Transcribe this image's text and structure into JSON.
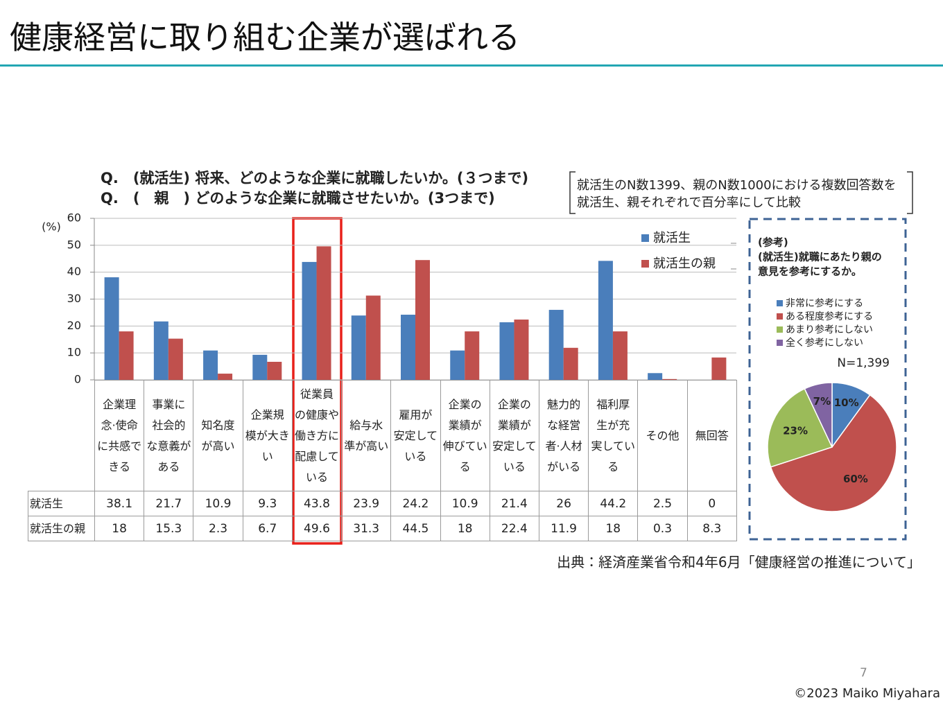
{
  "title": "健康経営に取り組む企業が選ばれる",
  "chart_data": [
    {
      "type": "bar",
      "title": [
        "Q.　(就活生) 将来、どのような企業に就職したいか。(３つまで)",
        "Q.　(　親　) どのような企業に就職させたいか。(3つまで)"
      ],
      "note": [
        "就活生のN数1399、親のN数1000における複数回答数を",
        "就活生、親それぞれで百分率にして比較"
      ],
      "ylabel": "(%)",
      "categories": [
        "企業理\n念·使命\nに共感で\nきる",
        "事業に\n社会的\nな意義が\nある",
        "知名度\nが高い",
        "企業規\n模が大き\nい",
        "従業員\nの健康や\n働き方に\n配慮して\nいる",
        "給与水\n準が高い",
        "雇用が\n安定して\nいる",
        "企業の\n業績が\n伸びてい\nる",
        "企業の\n業績が\n安定して\nいる",
        "魅力的\nな経営\n者·人材\nがいる",
        "福利厚\n生が充\n実してい\nる",
        "その他",
        "無回答"
      ],
      "series": [
        {
          "name": "就活生",
          "color": "#4a7ebb",
          "values": [
            38.1,
            21.7,
            10.9,
            9.3,
            43.8,
            23.9,
            24.2,
            10.9,
            21.4,
            26,
            44.2,
            2.5,
            0
          ]
        },
        {
          "name": "就活生の親",
          "color": "#c0504d",
          "values": [
            18,
            15.3,
            2.3,
            6.7,
            49.6,
            31.3,
            44.5,
            18,
            22.4,
            11.9,
            18,
            0.3,
            8.3
          ]
        }
      ],
      "ylim": [
        0,
        60
      ],
      "yticks": [
        0,
        10,
        20,
        30,
        40,
        50,
        60
      ],
      "grid": true,
      "legend": "upper right"
    },
    {
      "type": "pie",
      "title": [
        "(参考)",
        "(就活生)就職にあたり親の",
        "意見を参考にするか。"
      ],
      "subtitle": "N=1,399",
      "categories": [
        "非常に参考にする",
        "ある程度参考にする",
        "あまり参考にしない",
        "全く参考にしない"
      ],
      "values": [
        10,
        60,
        23,
        7
      ],
      "value_labels": [
        "10%",
        "60%",
        "23%",
        "7%"
      ],
      "colors": [
        "#4a7ebb",
        "#c0504d",
        "#9bbb59",
        "#8064a2"
      ]
    }
  ],
  "source": "出典：経済産業省令和4年6月「健康経営の推進について」",
  "page_number": "7",
  "copyright": "©2023 Maiko Miyahara"
}
